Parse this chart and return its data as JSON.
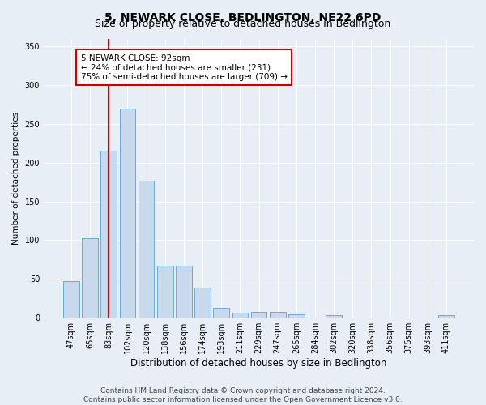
{
  "title": "5, NEWARK CLOSE, BEDLINGTON, NE22 6PD",
  "subtitle": "Size of property relative to detached houses in Bedlington",
  "xlabel": "Distribution of detached houses by size in Bedlington",
  "ylabel": "Number of detached properties",
  "bar_labels": [
    "47sqm",
    "65sqm",
    "83sqm",
    "102sqm",
    "120sqm",
    "138sqm",
    "156sqm",
    "174sqm",
    "193sqm",
    "211sqm",
    "229sqm",
    "247sqm",
    "265sqm",
    "284sqm",
    "302sqm",
    "320sqm",
    "338sqm",
    "356sqm",
    "375sqm",
    "393sqm",
    "411sqm"
  ],
  "bar_values": [
    47,
    103,
    215,
    270,
    177,
    67,
    67,
    39,
    13,
    7,
    8,
    8,
    4,
    0,
    3,
    0,
    0,
    0,
    0,
    0,
    3
  ],
  "bar_color": "#c8d9ee",
  "bar_edge_color": "#6aaad4",
  "redline_label": "5 NEWARK CLOSE: 92sqm",
  "annotation_line1": "← 24% of detached houses are smaller (231)",
  "annotation_line2": "75% of semi-detached houses are larger (709) →",
  "annotation_box_color": "#ffffff",
  "annotation_box_edge": "#cc0000",
  "ylim": [
    0,
    360
  ],
  "yticks": [
    0,
    50,
    100,
    150,
    200,
    250,
    300,
    350
  ],
  "footnote1": "Contains HM Land Registry data © Crown copyright and database right 2024.",
  "footnote2": "Contains public sector information licensed under the Open Government Licence v3.0.",
  "bg_color": "#e8eef6",
  "plot_bg_color": "#e8eef6",
  "grid_color": "#ffffff",
  "title_fontsize": 10,
  "subtitle_fontsize": 9,
  "xlabel_fontsize": 8.5,
  "ylabel_fontsize": 7.5,
  "tick_fontsize": 7,
  "annotation_fontsize": 7.5,
  "footnote_fontsize": 6.5
}
